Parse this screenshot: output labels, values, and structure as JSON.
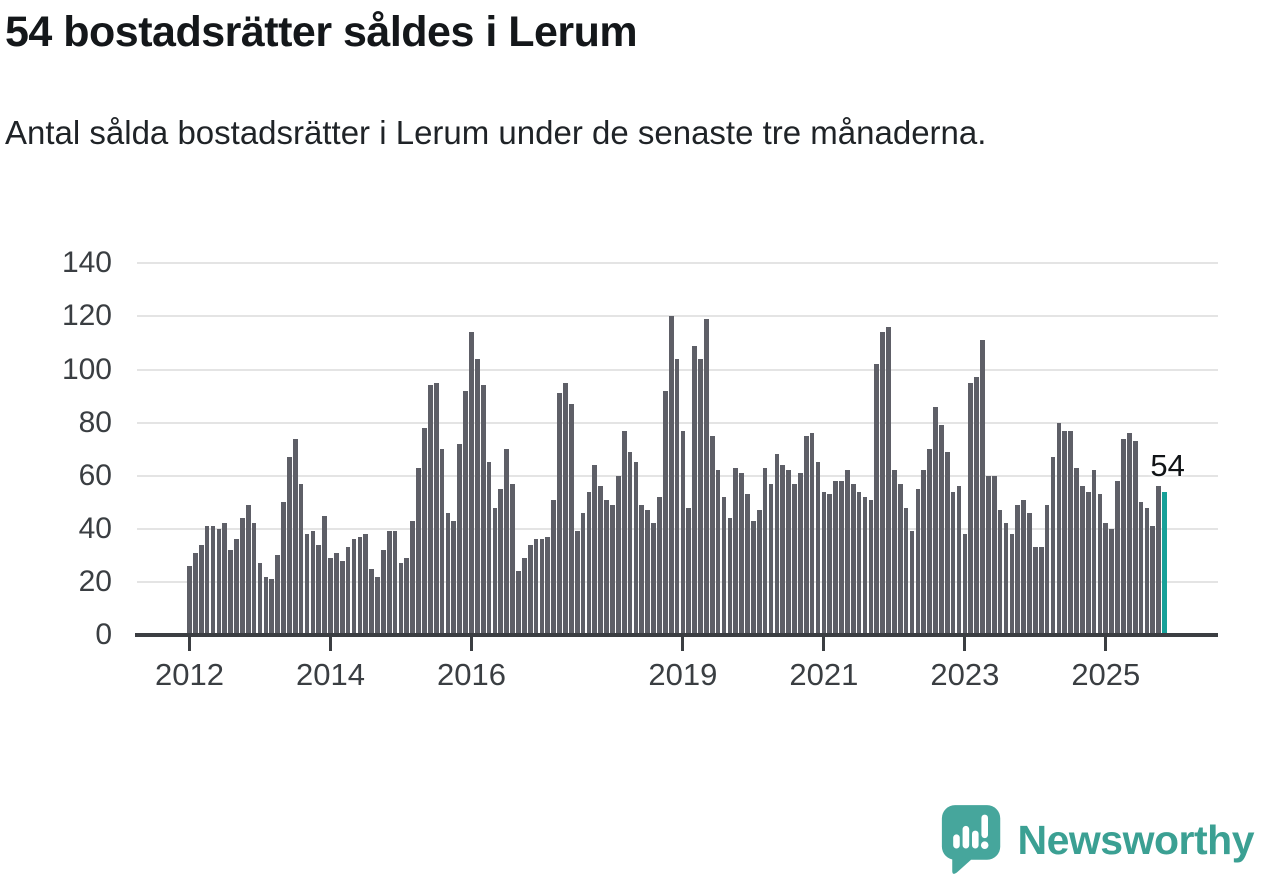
{
  "header": {
    "title": "54 bostadsrätter såldes i Lerum",
    "subtitle": "Antal sålda bostadsrätter i Lerum under de senaste tre månaderna."
  },
  "chart_data": {
    "type": "bar",
    "title": "54 bostadsrätter såldes i Lerum",
    "subtitle": "Antal sålda bostadsrätter i Lerum under de senaste tre månaderna.",
    "frequency": "monthly",
    "x_start": "2012-01",
    "x_end": "2025-11",
    "values": [
      26,
      31,
      34,
      41,
      41,
      40,
      42,
      32,
      36,
      44,
      49,
      42,
      27,
      22,
      21,
      30,
      50,
      67,
      74,
      57,
      38,
      39,
      34,
      45,
      29,
      31,
      28,
      33,
      36,
      37,
      38,
      25,
      22,
      32,
      39,
      39,
      27,
      29,
      43,
      63,
      78,
      94,
      95,
      70,
      46,
      43,
      72,
      92,
      114,
      104,
      94,
      65,
      48,
      55,
      70,
      57,
      24,
      29,
      34,
      36,
      36,
      37,
      51,
      91,
      95,
      87,
      39,
      46,
      54,
      64,
      56,
      51,
      49,
      60,
      77,
      69,
      65,
      49,
      47,
      42,
      52,
      92,
      120,
      104,
      77,
      48,
      109,
      104,
      119,
      75,
      62,
      52,
      44,
      63,
      61,
      53,
      43,
      47,
      63,
      57,
      68,
      64,
      62,
      57,
      61,
      75,
      76,
      65,
      54,
      53,
      58,
      58,
      62,
      57,
      54,
      52,
      51,
      102,
      114,
      116,
      62,
      57,
      48,
      39,
      55,
      62,
      70,
      86,
      79,
      69,
      54,
      56,
      38,
      95,
      97,
      111,
      60,
      60,
      47,
      42,
      38,
      49,
      51,
      46,
      33,
      33,
      49,
      67,
      80,
      77,
      77,
      63,
      56,
      54,
      62,
      53,
      42,
      40,
      58,
      74,
      76,
      73,
      50,
      48,
      41,
      56,
      54
    ],
    "highlight": {
      "index": 166,
      "value": 54,
      "label": "54"
    },
    "y_ticks": [
      0,
      20,
      40,
      60,
      80,
      100,
      120,
      140
    ],
    "ylim": [
      0,
      145
    ],
    "x_ticks": [
      {
        "label": "2012",
        "month_index": 0
      },
      {
        "label": "2014",
        "month_index": 24
      },
      {
        "label": "2016",
        "month_index": 48
      },
      {
        "label": "2019",
        "month_index": 84
      },
      {
        "label": "2021",
        "month_index": 108
      },
      {
        "label": "2023",
        "month_index": 132
      },
      {
        "label": "2025",
        "month_index": 156
      }
    ],
    "grid": true,
    "legend": false,
    "colors": {
      "bar": "#5e5f67",
      "highlight": "#16a098",
      "grid": "#e4e4e4",
      "axis": "#3b3e42",
      "annotation": "#111417"
    }
  },
  "footer": {
    "brand": "Newsworthy",
    "logo_icon": "newsworthy-speech-bubble-bar-chart-icon",
    "brand_color": "#3ba093"
  }
}
